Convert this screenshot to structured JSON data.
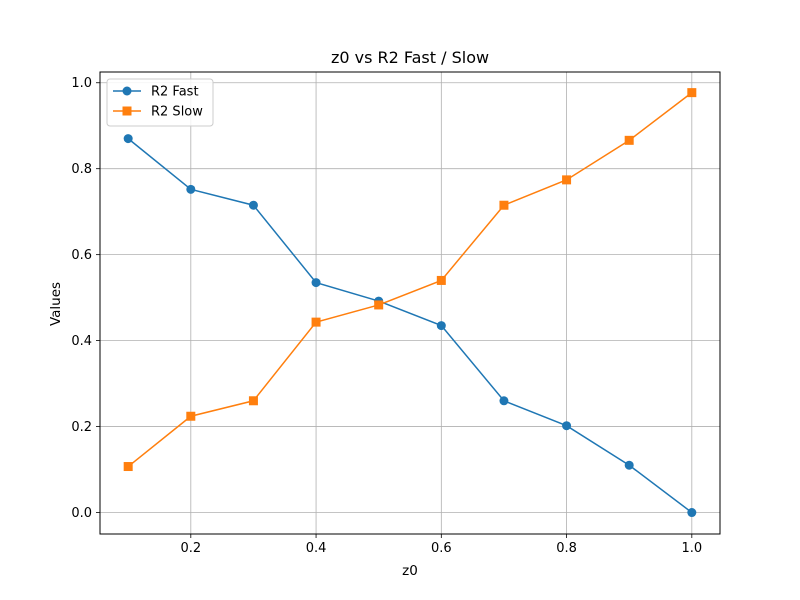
{
  "chart_data": {
    "type": "line",
    "title": "z0 vs R2 Fast / Slow",
    "xlabel": "z0",
    "ylabel": "Values",
    "x": [
      0.1,
      0.2,
      0.3,
      0.4,
      0.5,
      0.6,
      0.7,
      0.8,
      0.9,
      1.0
    ],
    "xlim": [
      0.055,
      1.045
    ],
    "ylim": [
      -0.05,
      1.025
    ],
    "xticks": [
      "0.2",
      "0.4",
      "0.6",
      "0.8",
      "1.0"
    ],
    "yticks": [
      "0.0",
      "0.2",
      "0.4",
      "0.6",
      "0.8",
      "1.0"
    ],
    "grid": true,
    "legend_position": "top-left",
    "series": [
      {
        "name": "R2 Fast",
        "color": "#1f77b4",
        "marker": "circle",
        "values": [
          0.87,
          0.752,
          0.715,
          0.535,
          0.492,
          0.435,
          0.26,
          0.202,
          0.11,
          0.0
        ]
      },
      {
        "name": "R2 Slow",
        "color": "#ff7f0e",
        "marker": "square",
        "values": [
          0.107,
          0.224,
          0.26,
          0.443,
          0.483,
          0.54,
          0.715,
          0.774,
          0.866,
          0.977
        ]
      }
    ]
  }
}
